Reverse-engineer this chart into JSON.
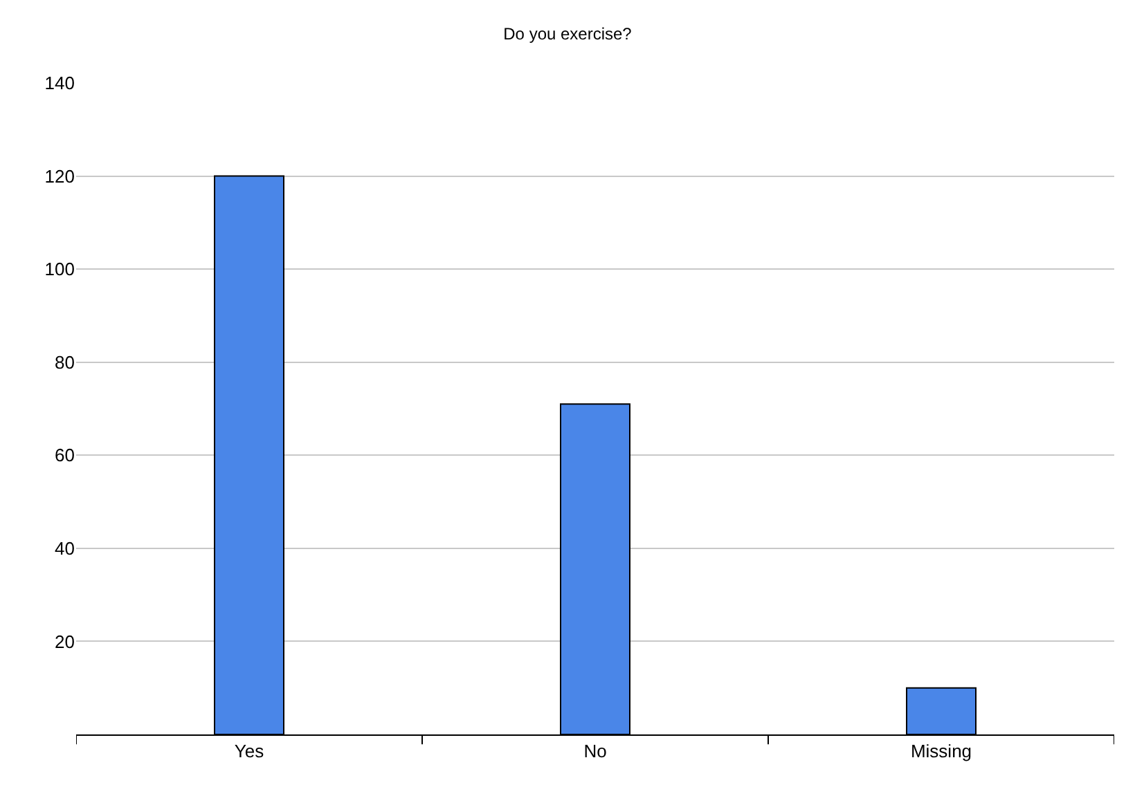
{
  "chart_data": {
    "type": "bar",
    "title": "Do you exercise?",
    "categories": [
      "Yes",
      "No",
      "Missing"
    ],
    "values": [
      120,
      71,
      10
    ],
    "color": "#4a86e8",
    "ylim": [
      0,
      140
    ],
    "yticks": [
      20,
      40,
      60,
      80,
      100,
      120,
      140
    ],
    "grid": "y"
  }
}
